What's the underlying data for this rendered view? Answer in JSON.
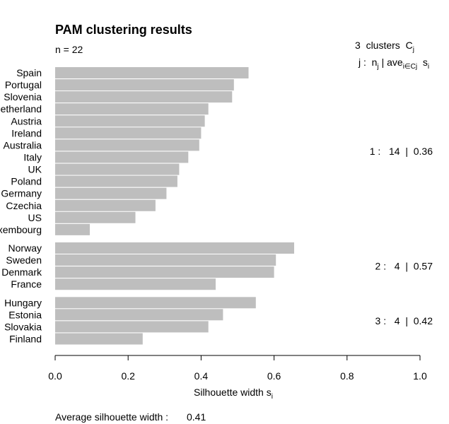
{
  "chart_data": {
    "type": "bar",
    "orientation": "horizontal",
    "title": "PAM clustering results",
    "subtitle": "n = 22",
    "xlabel_main": "Silhouette width s",
    "xlabel_sub": "i",
    "xlim": [
      0,
      1
    ],
    "xticks": [
      "0.0",
      "0.2",
      "0.4",
      "0.6",
      "0.8",
      "1.0"
    ],
    "bar_color": "#bebebe",
    "clusters": [
      {
        "id": "1",
        "n": "14",
        "ave": "0.36",
        "items": [
          {
            "label": "Spain",
            "value": 0.53
          },
          {
            "label": "Portugal",
            "value": 0.49
          },
          {
            "label": "Slovenia",
            "value": 0.485
          },
          {
            "label": "Netherland",
            "value": 0.42
          },
          {
            "label": "Austria",
            "value": 0.41
          },
          {
            "label": "Ireland",
            "value": 0.4
          },
          {
            "label": "Australia",
            "value": 0.395
          },
          {
            "label": "Italy",
            "value": 0.365
          },
          {
            "label": "UK",
            "value": 0.34
          },
          {
            "label": "Poland",
            "value": 0.335
          },
          {
            "label": "Germany",
            "value": 0.305
          },
          {
            "label": "Czechia",
            "value": 0.275
          },
          {
            "label": "US",
            "value": 0.22
          },
          {
            "label": "Luxembourg",
            "value": 0.095
          }
        ]
      },
      {
        "id": "2",
        "n": "4",
        "ave": "0.57",
        "items": [
          {
            "label": "Norway",
            "value": 0.655
          },
          {
            "label": "Sweden",
            "value": 0.605
          },
          {
            "label": "Denmark",
            "value": 0.6
          },
          {
            "label": "France",
            "value": 0.44
          }
        ]
      },
      {
        "id": "3",
        "n": "4",
        "ave": "0.42",
        "items": [
          {
            "label": "Hungary",
            "value": 0.55
          },
          {
            "label": "Estonia",
            "value": 0.46
          },
          {
            "label": "Slovakia",
            "value": 0.42
          },
          {
            "label": "Finland",
            "value": 0.24
          }
        ]
      }
    ],
    "average_label": "Average silhouette width :",
    "average_value": "0.41"
  }
}
